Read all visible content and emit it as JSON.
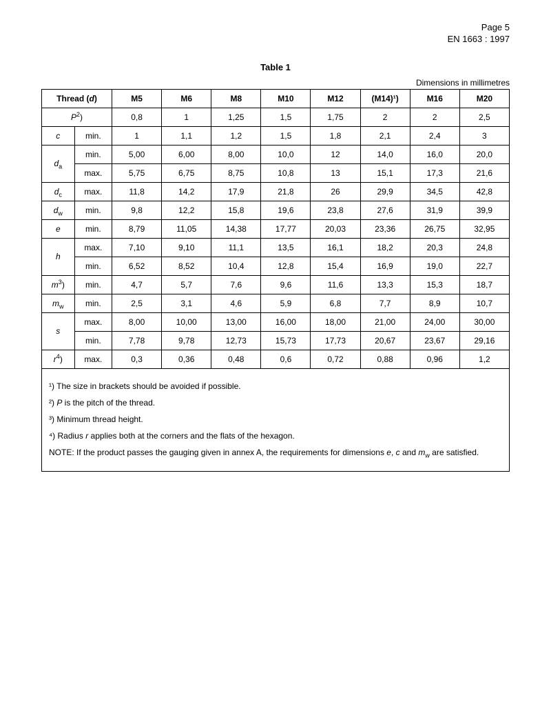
{
  "header": {
    "page_line": "Page 5",
    "standard_line": "EN 1663 : 1997"
  },
  "table": {
    "caption": "Table 1",
    "units_label": "Dimensions in millimetres",
    "head": {
      "thread_label_pre": "Thread (",
      "thread_label_sym": "d",
      "thread_label_post": ")",
      "cols": [
        "M5",
        "M6",
        "M8",
        "M10",
        "M12",
        "(M14)¹)",
        "M16",
        "M20"
      ]
    },
    "rows": [
      {
        "label_html": "P²)",
        "sub": "",
        "v": [
          "0,8",
          "1",
          "1,25",
          "1,5",
          "1,75",
          "2",
          "2",
          "2,5"
        ]
      },
      {
        "label_html": "c",
        "sub": "min.",
        "v": [
          "1",
          "1,1",
          "1,2",
          "1,5",
          "1,8",
          "2,1",
          "2,4",
          "3"
        ]
      },
      {
        "label_html": "dₐ",
        "sub": "min.",
        "v": [
          "5,00",
          "6,00",
          "8,00",
          "10,0",
          "12",
          "14,0",
          "16,0",
          "20,0"
        ],
        "group": "da"
      },
      {
        "label_html": "",
        "sub": "max.",
        "v": [
          "5,75",
          "6,75",
          "8,75",
          "10,8",
          "13",
          "15,1",
          "17,3",
          "21,6"
        ],
        "group": "da"
      },
      {
        "label_html": "d꜀",
        "sub": "max.",
        "v": [
          "11,8",
          "14,2",
          "17,9",
          "21,8",
          "26",
          "29,9",
          "34,5",
          "42,8"
        ]
      },
      {
        "label_html": "dᵥᵥ",
        "sub": "min.",
        "v": [
          "9,8",
          "12,2",
          "15,8",
          "19,6",
          "23,8",
          "27,6",
          "31,9",
          "39,9"
        ]
      },
      {
        "label_html": "e",
        "sub": "min.",
        "v": [
          "8,79",
          "11,05",
          "14,38",
          "17,77",
          "20,03",
          "23,36",
          "26,75",
          "32,95"
        ]
      },
      {
        "label_html": "h",
        "sub": "max.",
        "v": [
          "7,10",
          "9,10",
          "11,1",
          "13,5",
          "16,1",
          "18,2",
          "20,3",
          "24,8"
        ],
        "group": "h"
      },
      {
        "label_html": "",
        "sub": "min.",
        "v": [
          "6,52",
          "8,52",
          "10,4",
          "12,8",
          "15,4",
          "16,9",
          "19,0",
          "22,7"
        ],
        "group": "h"
      },
      {
        "label_html": "m³)",
        "sub": "min.",
        "v": [
          "4,7",
          "5,7",
          "7,6",
          "9,6",
          "11,6",
          "13,3",
          "15,3",
          "18,7"
        ]
      },
      {
        "label_html": "mᵥᵥ",
        "sub": "min.",
        "v": [
          "2,5",
          "3,1",
          "4,6",
          "5,9",
          "6,8",
          "7,7",
          "8,9",
          "10,7"
        ]
      },
      {
        "label_html": "s",
        "sub": "max.",
        "v": [
          "8,00",
          "10,00",
          "13,00",
          "16,00",
          "18,00",
          "21,00",
          "24,00",
          "30,00"
        ],
        "group": "s"
      },
      {
        "label_html": "",
        "sub": "min.",
        "v": [
          "7,78",
          "9,78",
          "12,73",
          "15,73",
          "17,73",
          "20,67",
          "23,67",
          "29,16"
        ],
        "group": "s"
      },
      {
        "label_html": "r⁴)",
        "sub": "max.",
        "v": [
          "0,3",
          "0,36",
          "0,48",
          "0,6",
          "0,72",
          "0,88",
          "0,96",
          "1,2"
        ]
      }
    ],
    "row_symbols": {
      "0": {
        "sym": "P",
        "sup": "2",
        "sub": "",
        "suffix": ")"
      },
      "1": {
        "sym": "c",
        "sup": "",
        "sub": "",
        "suffix": ""
      },
      "2": {
        "sym": "d",
        "sup": "",
        "sub": "a",
        "suffix": ""
      },
      "4": {
        "sym": "d",
        "sup": "",
        "sub": "c",
        "suffix": ""
      },
      "5": {
        "sym": "d",
        "sup": "",
        "sub": "w",
        "suffix": ""
      },
      "6": {
        "sym": "e",
        "sup": "",
        "sub": "",
        "suffix": ""
      },
      "7": {
        "sym": "h",
        "sup": "",
        "sub": "",
        "suffix": ""
      },
      "9": {
        "sym": "m",
        "sup": "3",
        "sub": "",
        "suffix": ")"
      },
      "10": {
        "sym": "m",
        "sup": "",
        "sub": "w",
        "suffix": ""
      },
      "11": {
        "sym": "s",
        "sup": "",
        "sub": "",
        "suffix": ""
      },
      "13": {
        "sym": "r",
        "sup": "4",
        "sub": "",
        "suffix": ")"
      }
    }
  },
  "notes": {
    "n1": "¹) The size in brackets should be avoided if possible.",
    "n2_pre": "²) ",
    "n2_sym": "P",
    "n2_post": " is the pitch of the thread.",
    "n3": "³) Minimum thread height.",
    "n4_pre": "⁴) Radius ",
    "n4_sym": "r",
    "n4_post": " applies both at the corners and the flats of the hexagon.",
    "note_pre": "NOTE: If the product passes the gauging given in annex A, the requirements for dimensions ",
    "note_sym1": "e",
    "note_mid1": ", ",
    "note_sym2": "c",
    "note_mid2": " and ",
    "note_sym3": "m",
    "note_sym3_sub": "w",
    "note_post": " are satisfied."
  },
  "style": {
    "col_widths_pct": [
      7,
      8,
      10.6,
      10.6,
      10.6,
      10.6,
      10.6,
      10.6,
      10.6,
      10.6
    ],
    "border_color": "#000000",
    "background_color": "#ffffff",
    "font_size_body": 12,
    "font_size_header": 13,
    "font_family": "Arial"
  }
}
